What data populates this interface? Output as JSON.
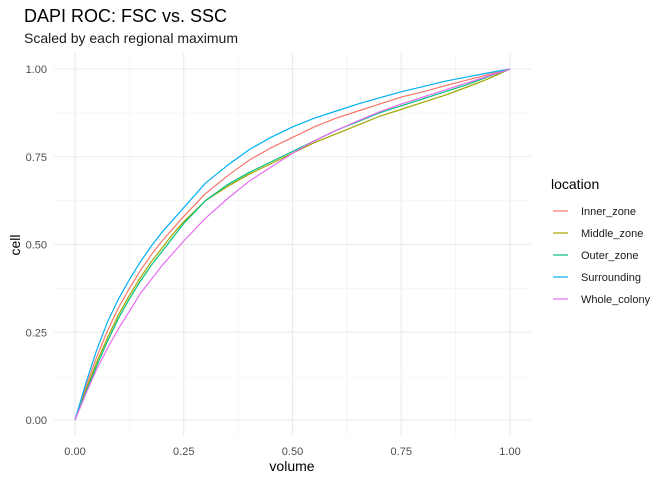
{
  "chart_data": {
    "type": "line",
    "title": "DAPI ROC: FSC vs. SSC",
    "subtitle": "Scaled by each regional maximum",
    "xlabel": "volume",
    "ylabel": "cell",
    "xlim": [
      0,
      1
    ],
    "ylim": [
      0,
      1
    ],
    "x_ticks": [
      "0.00",
      "0.25",
      "0.50",
      "0.75",
      "1.00"
    ],
    "y_ticks": [
      "0.00",
      "0.25",
      "0.50",
      "0.75",
      "1.00"
    ],
    "grid": true,
    "legend": {
      "title": "location",
      "position": "right"
    },
    "series": [
      {
        "name": "Inner_zone",
        "color": "#F8766D",
        "x": [
          0,
          0.025,
          0.05,
          0.075,
          0.1,
          0.125,
          0.15,
          0.175,
          0.2,
          0.225,
          0.25,
          0.3,
          0.35,
          0.4,
          0.45,
          0.5,
          0.55,
          0.6,
          0.65,
          0.7,
          0.75,
          0.8,
          0.85,
          0.9,
          0.95,
          1.0
        ],
        "y": [
          0,
          0.095,
          0.18,
          0.255,
          0.32,
          0.375,
          0.425,
          0.47,
          0.51,
          0.545,
          0.58,
          0.645,
          0.695,
          0.74,
          0.775,
          0.805,
          0.835,
          0.86,
          0.88,
          0.9,
          0.92,
          0.935,
          0.952,
          0.968,
          0.984,
          1.0
        ]
      },
      {
        "name": "Middle_zone",
        "color": "#A3A500",
        "x": [
          0,
          0.025,
          0.05,
          0.075,
          0.1,
          0.125,
          0.15,
          0.175,
          0.2,
          0.225,
          0.25,
          0.3,
          0.35,
          0.4,
          0.45,
          0.5,
          0.55,
          0.6,
          0.65,
          0.7,
          0.75,
          0.8,
          0.85,
          0.9,
          0.95,
          1.0
        ],
        "y": [
          0,
          0.085,
          0.165,
          0.235,
          0.3,
          0.355,
          0.405,
          0.45,
          0.49,
          0.53,
          0.565,
          0.625,
          0.665,
          0.7,
          0.73,
          0.76,
          0.79,
          0.815,
          0.84,
          0.865,
          0.885,
          0.905,
          0.925,
          0.948,
          0.972,
          1.0
        ]
      },
      {
        "name": "Outer_zone",
        "color": "#00BF7D",
        "x": [
          0,
          0.025,
          0.05,
          0.075,
          0.1,
          0.125,
          0.15,
          0.175,
          0.2,
          0.225,
          0.25,
          0.3,
          0.35,
          0.4,
          0.45,
          0.5,
          0.55,
          0.6,
          0.65,
          0.7,
          0.75,
          0.8,
          0.85,
          0.9,
          0.95,
          1.0
        ],
        "y": [
          0,
          0.08,
          0.155,
          0.225,
          0.29,
          0.345,
          0.395,
          0.44,
          0.48,
          0.52,
          0.56,
          0.625,
          0.67,
          0.705,
          0.735,
          0.765,
          0.795,
          0.825,
          0.85,
          0.875,
          0.895,
          0.915,
          0.935,
          0.955,
          0.978,
          1.0
        ]
      },
      {
        "name": "Surrounding",
        "color": "#00B0F6",
        "x": [
          0,
          0.025,
          0.05,
          0.075,
          0.1,
          0.125,
          0.15,
          0.175,
          0.2,
          0.225,
          0.25,
          0.3,
          0.35,
          0.4,
          0.45,
          0.5,
          0.55,
          0.6,
          0.65,
          0.7,
          0.75,
          0.8,
          0.85,
          0.9,
          0.95,
          1.0
        ],
        "y": [
          0,
          0.105,
          0.2,
          0.28,
          0.345,
          0.4,
          0.45,
          0.495,
          0.535,
          0.57,
          0.605,
          0.675,
          0.725,
          0.77,
          0.805,
          0.835,
          0.86,
          0.88,
          0.9,
          0.918,
          0.935,
          0.95,
          0.965,
          0.977,
          0.989,
          1.0
        ]
      },
      {
        "name": "Whole_colony",
        "color": "#E76BF3",
        "x": [
          0,
          0.025,
          0.05,
          0.075,
          0.1,
          0.125,
          0.15,
          0.175,
          0.2,
          0.225,
          0.25,
          0.3,
          0.35,
          0.4,
          0.45,
          0.5,
          0.55,
          0.6,
          0.65,
          0.7,
          0.75,
          0.8,
          0.85,
          0.9,
          0.95,
          1.0
        ],
        "y": [
          0,
          0.075,
          0.145,
          0.205,
          0.26,
          0.31,
          0.36,
          0.4,
          0.44,
          0.475,
          0.51,
          0.575,
          0.63,
          0.68,
          0.72,
          0.76,
          0.795,
          0.825,
          0.852,
          0.878,
          0.9,
          0.92,
          0.94,
          0.96,
          0.98,
          1.0
        ]
      }
    ]
  }
}
